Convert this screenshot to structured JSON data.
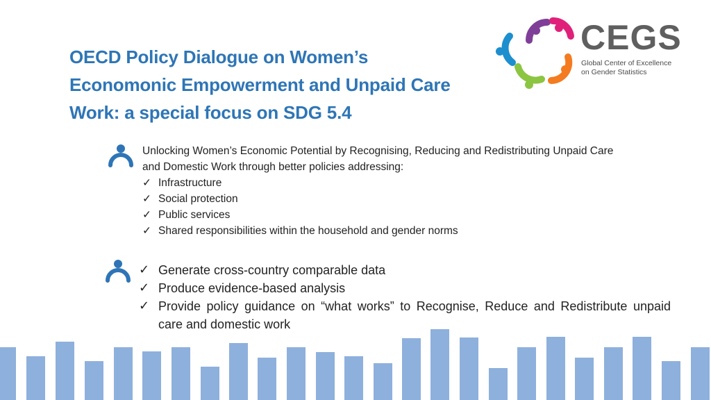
{
  "title": {
    "lines": [
      "OECD Policy Dialogue on Women’s",
      "Economonic Empowerment and Unpaid Care",
      "Work: a special focus on SDG 5.4"
    ]
  },
  "logo": {
    "wordmark": "CEGS",
    "subtitle_lines": [
      "Global Center of Excellence",
      "on Gender Statistics"
    ],
    "ring_colors": [
      "#1d8fce",
      "#8bc541",
      "#7f3f98",
      "#e0217a",
      "#f47b20"
    ],
    "icon": "people-circle-logo"
  },
  "section1": {
    "icon": "person-icon",
    "lead_lines": [
      "Unlocking Women’s Economic Potential by Recognising, Reducing and Redistributing Unpaid Care",
      "and Domestic Work through better policies addressing:"
    ],
    "items": [
      "Infrastructure",
      "Social protection",
      "Public services",
      "Shared responsibilities within the household and gender norms"
    ]
  },
  "section2": {
    "icon": "person-icon",
    "items": [
      "Generate cross-country comparable data",
      "Produce evidence-based analysis",
      "Provide policy guidance on “what works” to Recognise, Reduce and Redistribute unpaid care and domestic work"
    ]
  },
  "check_mark": "✓",
  "colors": {
    "title": "#2e75b6",
    "bars": "#8eb0dc",
    "icon": "#2e75b6"
  }
}
